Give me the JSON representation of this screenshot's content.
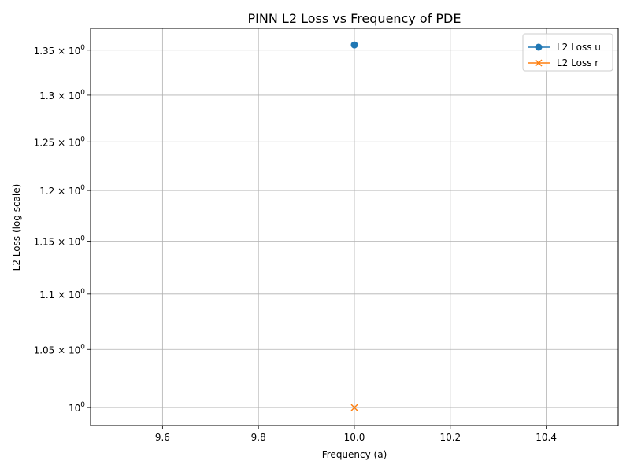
{
  "chart_data": {
    "type": "line",
    "title": "PINN L2 Loss vs Frequency of PDE",
    "xlabel": "Frequency (a)",
    "ylabel": "L2 Loss (log scale)",
    "yscale": "log",
    "xlim": [
      9.45,
      10.55
    ],
    "ylim": [
      0.985,
      1.375
    ],
    "x_ticks": [
      9.6,
      9.8,
      10.0,
      10.2,
      10.4
    ],
    "x_tick_labels": [
      "9.6",
      "9.8",
      "10.0",
      "10.2",
      "10.4"
    ],
    "y_ticks": [
      1.0,
      1.05,
      1.1,
      1.15,
      1.2,
      1.25,
      1.3,
      1.35
    ],
    "y_tick_labels": [
      {
        "mantissa": "",
        "base": "10",
        "exp": "0"
      },
      {
        "mantissa": "1.05 × ",
        "base": "10",
        "exp": "0"
      },
      {
        "mantissa": "1.1 × ",
        "base": "10",
        "exp": "0"
      },
      {
        "mantissa": "1.15 × ",
        "base": "10",
        "exp": "0"
      },
      {
        "mantissa": "1.2 × ",
        "base": "10",
        "exp": "0"
      },
      {
        "mantissa": "1.25 × ",
        "base": "10",
        "exp": "0"
      },
      {
        "mantissa": "1.3 × ",
        "base": "10",
        "exp": "0"
      },
      {
        "mantissa": "1.35 × ",
        "base": "10",
        "exp": "0"
      }
    ],
    "grid": true,
    "legend_position": "top-right",
    "series": [
      {
        "name": "L2 Loss u",
        "x": [
          10.0
        ],
        "y": [
          1.356
        ],
        "color": "#1f77b4",
        "marker": "circle"
      },
      {
        "name": "L2 Loss r",
        "x": [
          10.0
        ],
        "y": [
          1.0
        ],
        "color": "#ff7f0e",
        "marker": "x"
      }
    ]
  }
}
